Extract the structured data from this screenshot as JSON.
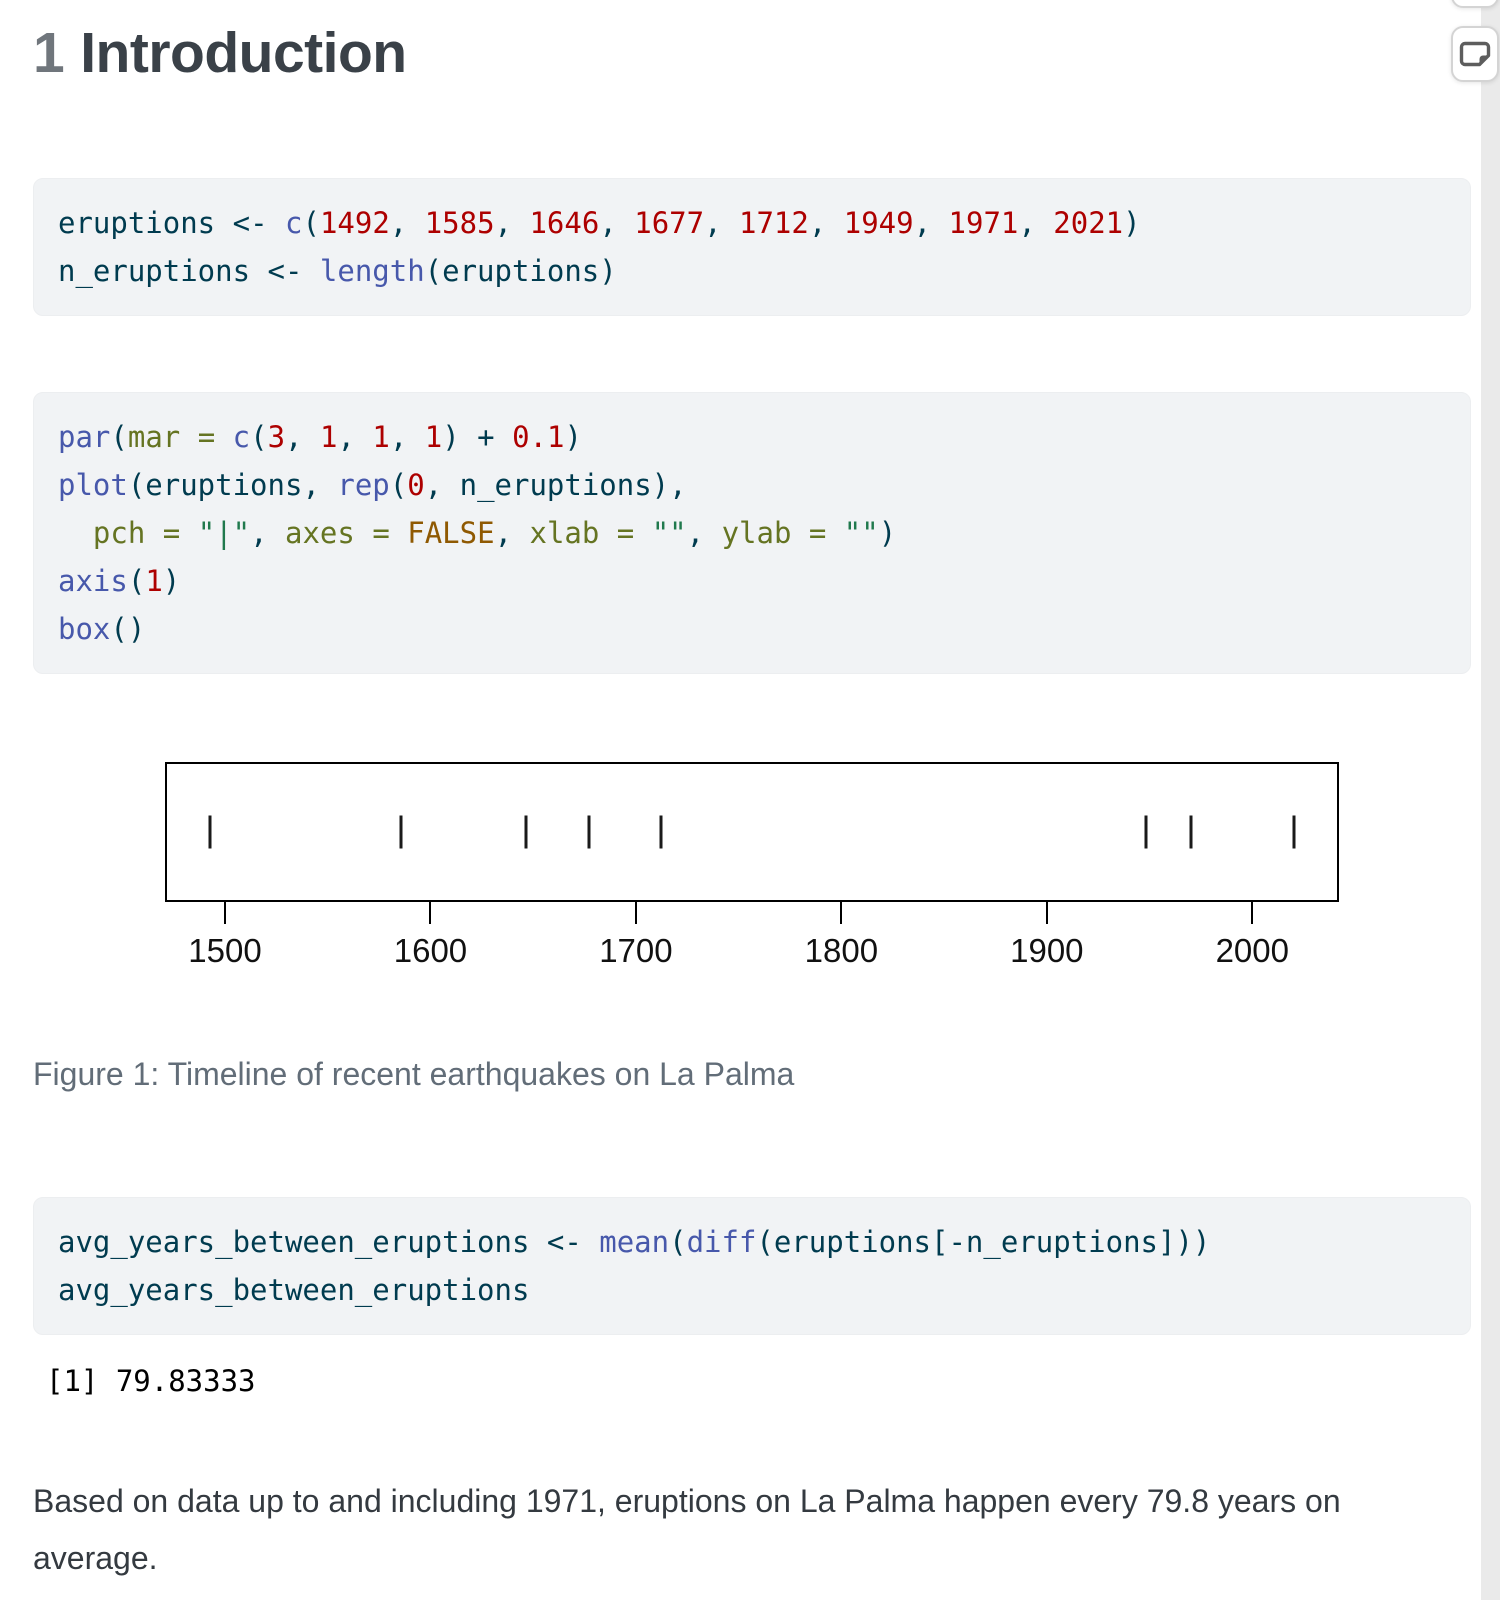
{
  "heading": {
    "number": "1",
    "title": "Introduction"
  },
  "code_blocks": [
    {
      "lines": [
        [
          {
            "t": "eruptions "
          },
          {
            "t": "<- "
          },
          {
            "t": "c",
            "c": "fu"
          },
          {
            "t": "("
          },
          {
            "t": "1492",
            "c": "dv"
          },
          {
            "t": ", "
          },
          {
            "t": "1585",
            "c": "dv"
          },
          {
            "t": ", "
          },
          {
            "t": "1646",
            "c": "dv"
          },
          {
            "t": ", "
          },
          {
            "t": "1677",
            "c": "dv"
          },
          {
            "t": ", "
          },
          {
            "t": "1712",
            "c": "dv"
          },
          {
            "t": ", "
          },
          {
            "t": "1949",
            "c": "dv"
          },
          {
            "t": ", "
          },
          {
            "t": "1971",
            "c": "dv"
          },
          {
            "t": ", "
          },
          {
            "t": "2021",
            "c": "dv"
          },
          {
            "t": ")"
          }
        ],
        [
          {
            "t": "n_eruptions "
          },
          {
            "t": "<- "
          },
          {
            "t": "length",
            "c": "fu"
          },
          {
            "t": "(eruptions)"
          }
        ]
      ]
    },
    {
      "lines": [
        [
          {
            "t": "par",
            "c": "fu"
          },
          {
            "t": "("
          },
          {
            "t": "mar =",
            "c": "at"
          },
          {
            "t": " "
          },
          {
            "t": "c",
            "c": "fu"
          },
          {
            "t": "("
          },
          {
            "t": "3",
            "c": "dv"
          },
          {
            "t": ", "
          },
          {
            "t": "1",
            "c": "dv"
          },
          {
            "t": ", "
          },
          {
            "t": "1",
            "c": "dv"
          },
          {
            "t": ", "
          },
          {
            "t": "1",
            "c": "dv"
          },
          {
            "t": ") + "
          },
          {
            "t": "0.1",
            "c": "fl"
          },
          {
            "t": ")"
          }
        ],
        [
          {
            "t": "plot",
            "c": "fu"
          },
          {
            "t": "(eruptions, "
          },
          {
            "t": "rep",
            "c": "fu"
          },
          {
            "t": "("
          },
          {
            "t": "0",
            "c": "dv"
          },
          {
            "t": ", n_eruptions),"
          }
        ],
        [
          {
            "t": "  "
          },
          {
            "t": "pch =",
            "c": "at"
          },
          {
            "t": " "
          },
          {
            "t": "\"|\"",
            "c": "st"
          },
          {
            "t": ", "
          },
          {
            "t": "axes =",
            "c": "at"
          },
          {
            "t": " "
          },
          {
            "t": "FALSE",
            "c": "cn"
          },
          {
            "t": ", "
          },
          {
            "t": "xlab =",
            "c": "at"
          },
          {
            "t": " "
          },
          {
            "t": "\"\"",
            "c": "st"
          },
          {
            "t": ", "
          },
          {
            "t": "ylab =",
            "c": "at"
          },
          {
            "t": " "
          },
          {
            "t": "\"\"",
            "c": "st"
          },
          {
            "t": ")"
          }
        ],
        [
          {
            "t": "axis",
            "c": "fu"
          },
          {
            "t": "("
          },
          {
            "t": "1",
            "c": "dv"
          },
          {
            "t": ")"
          }
        ],
        [
          {
            "t": "box",
            "c": "fu"
          },
          {
            "t": "()"
          }
        ]
      ]
    },
    {
      "lines": [
        [
          {
            "t": "avg_years_between_eruptions "
          },
          {
            "t": "<- "
          },
          {
            "t": "mean",
            "c": "fu"
          },
          {
            "t": "("
          },
          {
            "t": "diff",
            "c": "fu"
          },
          {
            "t": "(eruptions[-n_eruptions]))"
          }
        ],
        [
          {
            "t": "avg_years_between_eruptions"
          }
        ]
      ]
    }
  ],
  "figure": {
    "caption": "Figure 1: Timeline of recent earthquakes on La Palma"
  },
  "chart_data": {
    "type": "scatter",
    "x": [
      1492,
      1585,
      1646,
      1677,
      1712,
      1949,
      1971,
      2021
    ],
    "y": [
      0,
      0,
      0,
      0,
      0,
      0,
      0,
      0
    ],
    "marker": "|",
    "xticks": [
      1500,
      1600,
      1700,
      1800,
      1900,
      2000
    ],
    "xlim": [
      1470.8,
      2042.2
    ],
    "xlabel": "",
    "ylabel": "",
    "grid": false,
    "legend": "none",
    "title": ""
  },
  "output_block": {
    "text": "[1] 79.83333"
  },
  "paragraph": "Based on data up to and including 1971, eruptions on La Palma happen every 79.8 years on average.",
  "icons": {
    "note_button": "page-note-icon"
  },
  "colors": {
    "code_background": "#f1f3f5",
    "code_base": "#003B4F",
    "function": "#4758AB",
    "number": "#AD0000",
    "string": "#20794D",
    "argument": "#657422",
    "constant": "#8f5902",
    "heading": "#3a4148",
    "section_number": "#70767c",
    "caption": "#626d78",
    "body_text": "#343a40",
    "scrollbar_track": "#eaeaea"
  }
}
